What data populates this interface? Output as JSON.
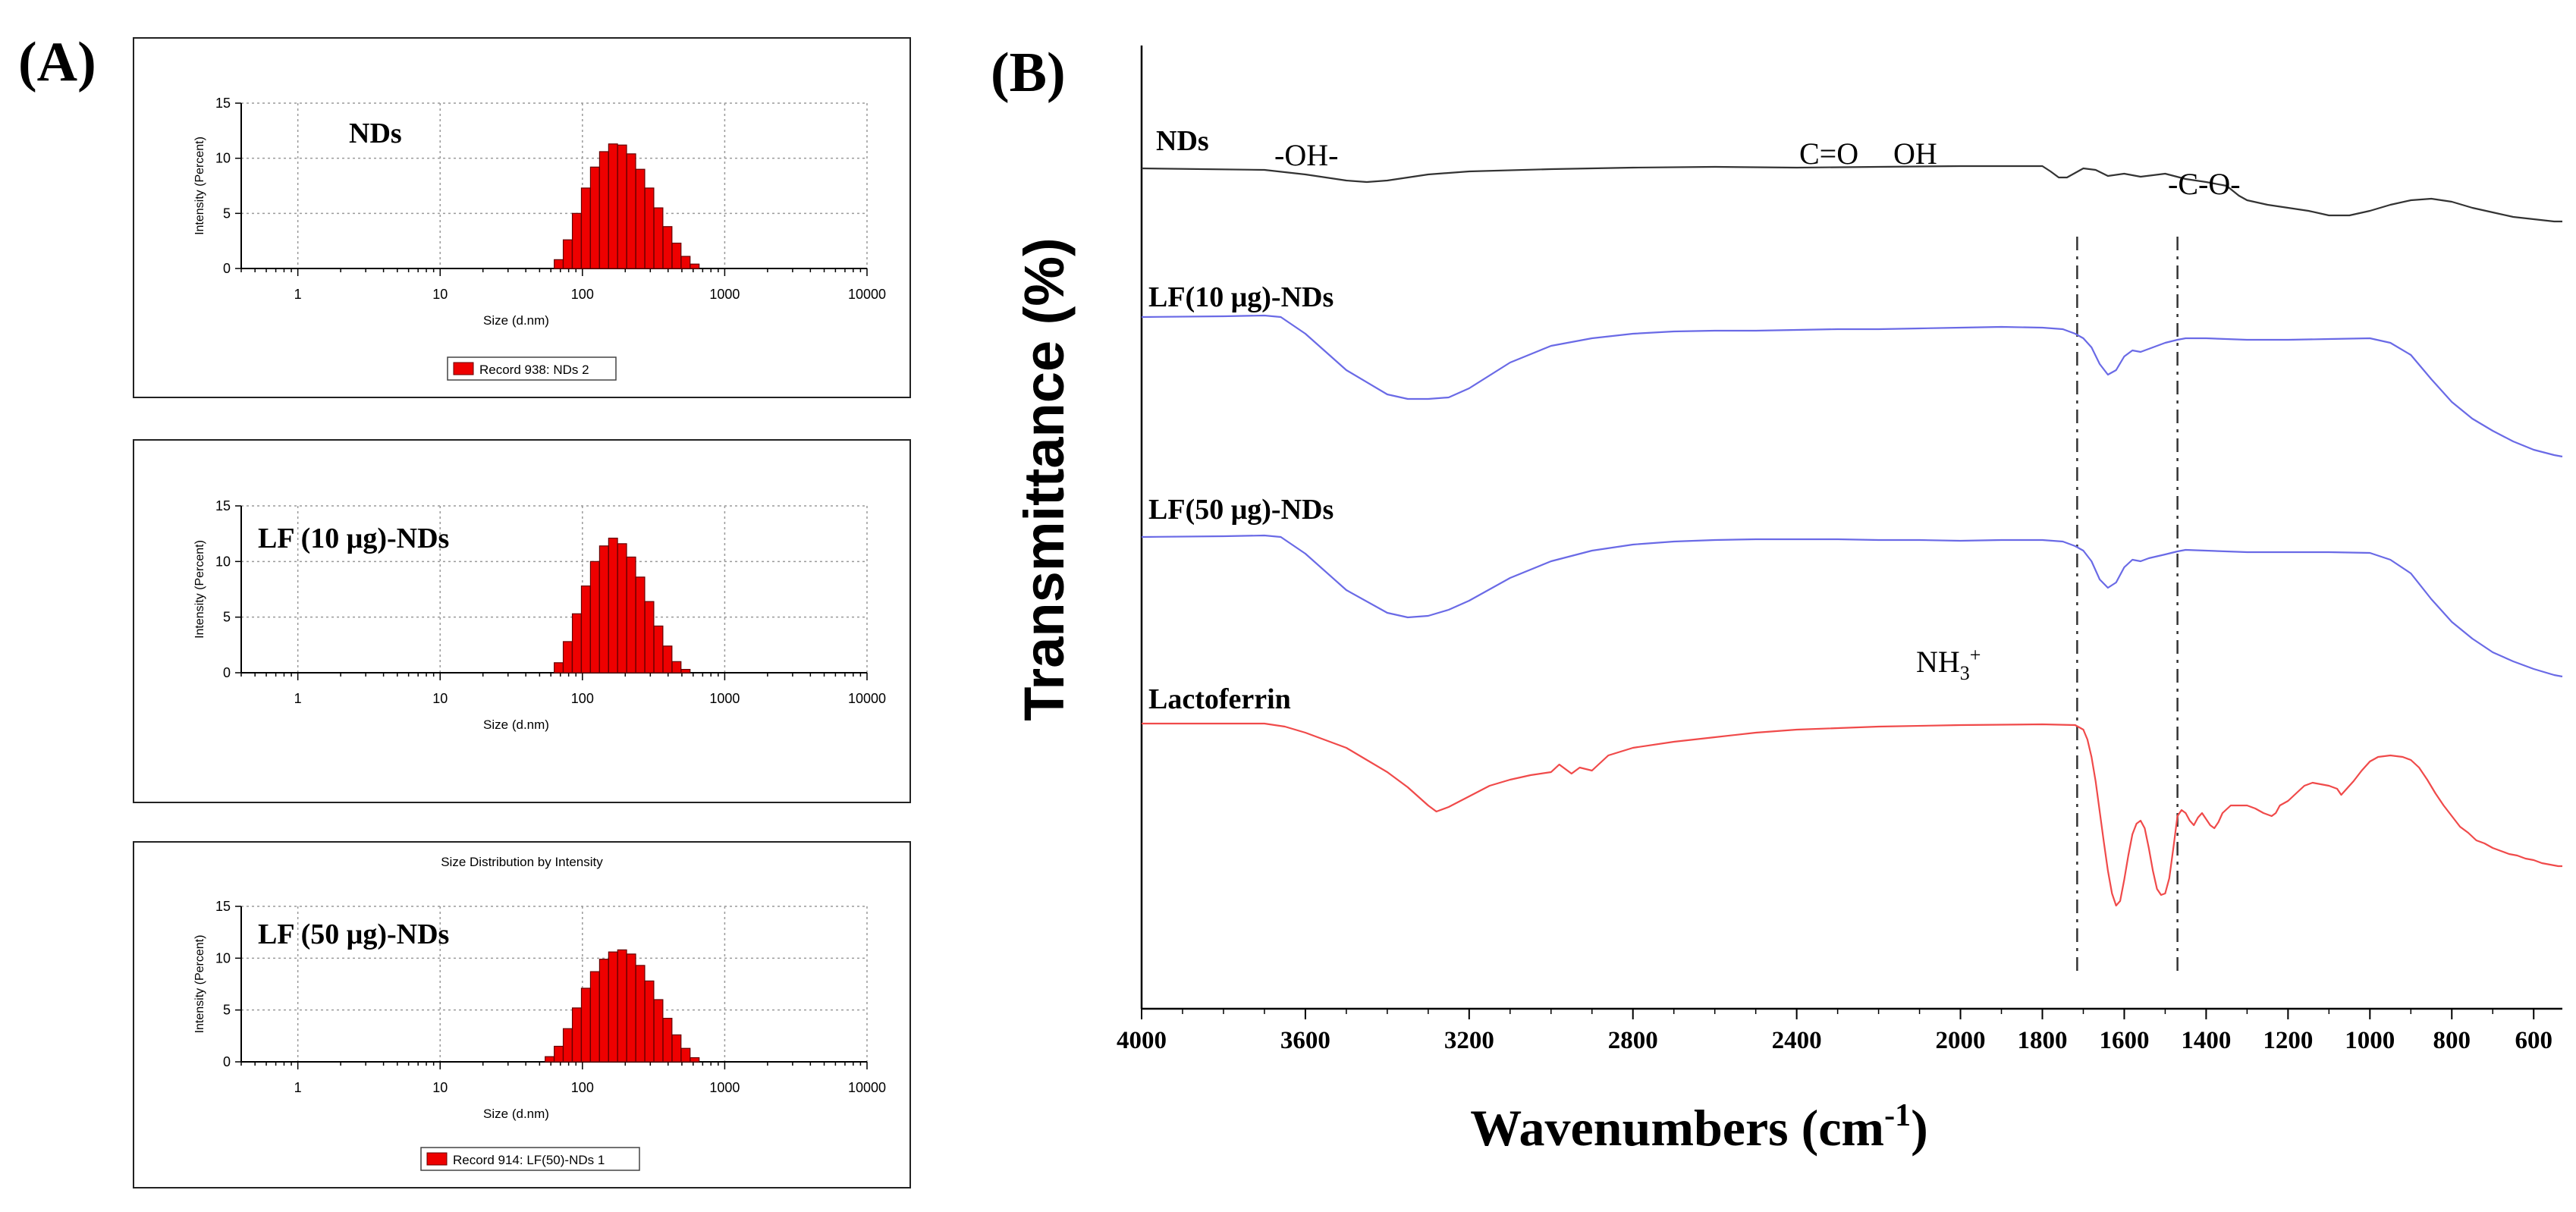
{
  "figure": {
    "panel_a_label": "(A)",
    "panel_b_label": "(B)"
  },
  "colors": {
    "bar_fill": "#ee0000",
    "bar_stroke": "#660000",
    "nds_spectrum": "#333333",
    "lf_spectrum": "#6a6ae6",
    "lactoferrin_spectrum": "#f04a4a",
    "grid": "#9a9a9a"
  },
  "chart_data": [
    {
      "type": "bar",
      "panel": "A1",
      "title": "",
      "sample_label": "NDs",
      "xlabel": "Size (d.nm)",
      "ylabel": "Intensity (Percent)",
      "xscale": "log",
      "xlim": [
        0.4,
        10000
      ],
      "ylim": [
        0,
        15
      ],
      "xticks": [
        "1",
        "10",
        "100",
        "1000",
        "10000"
      ],
      "yticks": [
        "0",
        "5",
        "10",
        "15"
      ],
      "grid": true,
      "legend": "Record 938: NDs 2",
      "bars": {
        "sizes": [
          68.1,
          78.8,
          91.3,
          105.7,
          122.4,
          141.8,
          164.2,
          190.1,
          220.2,
          255.0,
          295.3,
          342.0,
          396.1,
          458.7,
          531.2,
          615.1
        ],
        "values": [
          0.8,
          2.6,
          5.0,
          7.3,
          9.2,
          10.6,
          11.3,
          11.2,
          10.4,
          9.0,
          7.3,
          5.5,
          3.8,
          2.3,
          1.1,
          0.4
        ]
      }
    },
    {
      "type": "bar",
      "panel": "A2",
      "title": "",
      "sample_label": "LF (10 μg)-NDs",
      "xlabel": "Size (d.nm)",
      "ylabel": "Intensity (Percent)",
      "xscale": "log",
      "xlim": [
        0.4,
        10000
      ],
      "ylim": [
        0,
        15
      ],
      "xticks": [
        "1",
        "10",
        "100",
        "1000",
        "10000"
      ],
      "yticks": [
        "0",
        "5",
        "10",
        "15"
      ],
      "grid": true,
      "legend": "",
      "bars": {
        "sizes": [
          68.1,
          78.8,
          91.3,
          105.7,
          122.4,
          141.8,
          164.2,
          190.1,
          220.2,
          255.0,
          295.3,
          342.0,
          396.1,
          458.7,
          531.2
        ],
        "values": [
          0.9,
          2.8,
          5.3,
          7.8,
          10.0,
          11.4,
          12.1,
          11.6,
          10.4,
          8.6,
          6.4,
          4.2,
          2.4,
          1.0,
          0.3
        ]
      }
    },
    {
      "type": "bar",
      "panel": "A3",
      "title": "Size Distribution by Intensity",
      "sample_label": "LF (50 μg)-NDs",
      "xlabel": "Size (d.nm)",
      "ylabel": "Intensity (Percent)",
      "xscale": "log",
      "xlim": [
        0.4,
        10000
      ],
      "ylim": [
        0,
        15
      ],
      "xticks": [
        "1",
        "10",
        "100",
        "1000",
        "10000"
      ],
      "yticks": [
        "0",
        "5",
        "10",
        "15"
      ],
      "grid": true,
      "legend": "Record 914: LF(50)-NDs 1",
      "bars": {
        "sizes": [
          58.8,
          68.1,
          78.8,
          91.3,
          105.7,
          122.4,
          141.8,
          164.2,
          190.1,
          220.2,
          255.0,
          295.3,
          342.0,
          396.1,
          458.7,
          531.2,
          615.1
        ],
        "values": [
          0.5,
          1.5,
          3.2,
          5.2,
          7.1,
          8.7,
          9.9,
          10.6,
          10.8,
          10.4,
          9.3,
          7.8,
          6.0,
          4.2,
          2.6,
          1.3,
          0.4
        ]
      }
    },
    {
      "type": "line",
      "panel": "B",
      "title": "",
      "xlabel": "Wavenumbers (cm",
      "xlabel_sup": "-1",
      "xlabel_end": ")",
      "ylabel": "Transmittance (%)",
      "xlim": [
        4000,
        530
      ],
      "xticks": [
        "4000",
        "3600",
        "3200",
        "2800",
        "2400",
        "2000",
        "1800",
        "1600",
        "1400",
        "1200",
        "1000",
        "800",
        "600"
      ],
      "guides": [
        1715,
        1470
      ],
      "annotations": {
        "oh_stretch": "-OH-",
        "carbonyl": "C=O",
        "hydroxyl": "OH",
        "c_o": "-C-O-",
        "nh3": "NH",
        "nh3_sub": "3",
        "nh3_sup": "+"
      },
      "series": [
        {
          "name": "NDs",
          "color_key": "nds_spectrum",
          "x": [
            4000,
            3700,
            3600,
            3500,
            3450,
            3400,
            3350,
            3300,
            3200,
            3000,
            2800,
            2600,
            2400,
            2200,
            2000,
            1900,
            1800,
            1780,
            1760,
            1740,
            1700,
            1670,
            1640,
            1600,
            1560,
            1500,
            1450,
            1400,
            1350,
            1320,
            1300,
            1250,
            1200,
            1150,
            1100,
            1050,
            1000,
            950,
            900,
            850,
            800,
            750,
            700,
            650,
            600,
            550,
            530
          ],
          "y": [
            222,
            224,
            230,
            238,
            240,
            238,
            234,
            230,
            226,
            223,
            221,
            220,
            221,
            220,
            219,
            219,
            219,
            226,
            234,
            234,
            222,
            224,
            232,
            229,
            233,
            229,
            236,
            240,
            245,
            258,
            264,
            270,
            274,
            278,
            284,
            284,
            278,
            270,
            264,
            262,
            266,
            274,
            280,
            286,
            289,
            292,
            292
          ]
        },
        {
          "name": "LF(10 μg)-NDs",
          "color_key": "lf_spectrum",
          "x": [
            4000,
            3800,
            3700,
            3660,
            3600,
            3500,
            3400,
            3350,
            3300,
            3250,
            3200,
            3100,
            3000,
            2900,
            2800,
            2700,
            2600,
            2500,
            2400,
            2300,
            2200,
            2100,
            2000,
            1900,
            1800,
            1750,
            1720,
            1700,
            1680,
            1660,
            1640,
            1620,
            1600,
            1580,
            1560,
            1540,
            1500,
            1470,
            1450,
            1400,
            1300,
            1200,
            1100,
            1000,
            950,
            900,
            850,
            800,
            750,
            700,
            650,
            600,
            550,
            530
          ],
          "y": [
            418,
            417,
            416,
            418,
            440,
            488,
            520,
            526,
            526,
            524,
            512,
            478,
            456,
            446,
            440,
            437,
            436,
            436,
            435,
            434,
            434,
            433,
            432,
            431,
            432,
            434,
            440,
            446,
            458,
            480,
            494,
            488,
            470,
            462,
            464,
            460,
            452,
            448,
            446,
            446,
            448,
            448,
            447,
            446,
            452,
            468,
            500,
            530,
            552,
            568,
            582,
            593,
            600,
            602
          ]
        },
        {
          "name": "LF(50 μg)-NDs",
          "color_key": "lf_spectrum",
          "x": [
            4000,
            3800,
            3700,
            3660,
            3600,
            3500,
            3400,
            3350,
            3300,
            3250,
            3200,
            3100,
            3000,
            2900,
            2800,
            2700,
            2600,
            2500,
            2400,
            2300,
            2200,
            2100,
            2000,
            1900,
            1800,
            1750,
            1720,
            1700,
            1680,
            1660,
            1640,
            1620,
            1600,
            1580,
            1560,
            1540,
            1500,
            1470,
            1450,
            1400,
            1300,
            1200,
            1100,
            1000,
            950,
            900,
            850,
            800,
            750,
            700,
            650,
            600,
            550,
            530
          ],
          "y": [
            708,
            707,
            706,
            708,
            730,
            778,
            808,
            814,
            812,
            804,
            792,
            762,
            740,
            726,
            718,
            714,
            712,
            711,
            711,
            711,
            712,
            712,
            713,
            712,
            712,
            714,
            720,
            726,
            740,
            764,
            775,
            768,
            748,
            738,
            740,
            736,
            731,
            727,
            725,
            726,
            728,
            728,
            728,
            729,
            738,
            756,
            790,
            820,
            842,
            860,
            872,
            882,
            890,
            892
          ]
        },
        {
          "name": "Lactoferrin",
          "color_key": "lactoferrin_spectrum",
          "x": [
            4000,
            3800,
            3700,
            3650,
            3600,
            3500,
            3450,
            3400,
            3350,
            3300,
            3280,
            3250,
            3200,
            3150,
            3100,
            3050,
            3000,
            2980,
            2950,
            2930,
            2900,
            2860,
            2800,
            2700,
            2600,
            2500,
            2400,
            2200,
            2000,
            1800,
            1720,
            1700,
            1690,
            1680,
            1670,
            1660,
            1650,
            1640,
            1630,
            1620,
            1610,
            1600,
            1590,
            1580,
            1570,
            1560,
            1550,
            1540,
            1530,
            1520,
            1510,
            1500,
            1490,
            1480,
            1470,
            1460,
            1450,
            1440,
            1430,
            1420,
            1410,
            1400,
            1390,
            1380,
            1370,
            1360,
            1340,
            1300,
            1280,
            1260,
            1240,
            1230,
            1220,
            1200,
            1180,
            1160,
            1140,
            1120,
            1100,
            1080,
            1070,
            1060,
            1040,
            1020,
            1000,
            980,
            950,
            920,
            900,
            880,
            860,
            840,
            820,
            800,
            780,
            760,
            740,
            720,
            700,
            680,
            660,
            640,
            620,
            600,
            580,
            560,
            540,
            530
          ],
          "y": [
            954,
            954,
            954,
            958,
            966,
            986,
            1002,
            1018,
            1038,
            1062,
            1070,
            1064,
            1050,
            1036,
            1028,
            1022,
            1018,
            1008,
            1020,
            1012,
            1016,
            996,
            986,
            978,
            972,
            966,
            962,
            958,
            956,
            955,
            956,
            962,
            975,
            998,
            1030,
            1070,
            1110,
            1148,
            1178,
            1194,
            1188,
            1160,
            1128,
            1100,
            1086,
            1082,
            1092,
            1118,
            1148,
            1172,
            1180,
            1178,
            1158,
            1118,
            1076,
            1068,
            1072,
            1082,
            1088,
            1078,
            1072,
            1080,
            1088,
            1092,
            1084,
            1072,
            1062,
            1062,
            1066,
            1072,
            1076,
            1072,
            1062,
            1056,
            1046,
            1036,
            1032,
            1034,
            1036,
            1040,
            1048,
            1042,
            1030,
            1016,
            1004,
            998,
            996,
            998,
            1002,
            1012,
            1028,
            1046,
            1062,
            1076,
            1090,
            1098,
            1108,
            1112,
            1118,
            1122,
            1126,
            1128,
            1132,
            1134,
            1138,
            1140,
            1142,
            1142
          ]
        }
      ]
    }
  ]
}
